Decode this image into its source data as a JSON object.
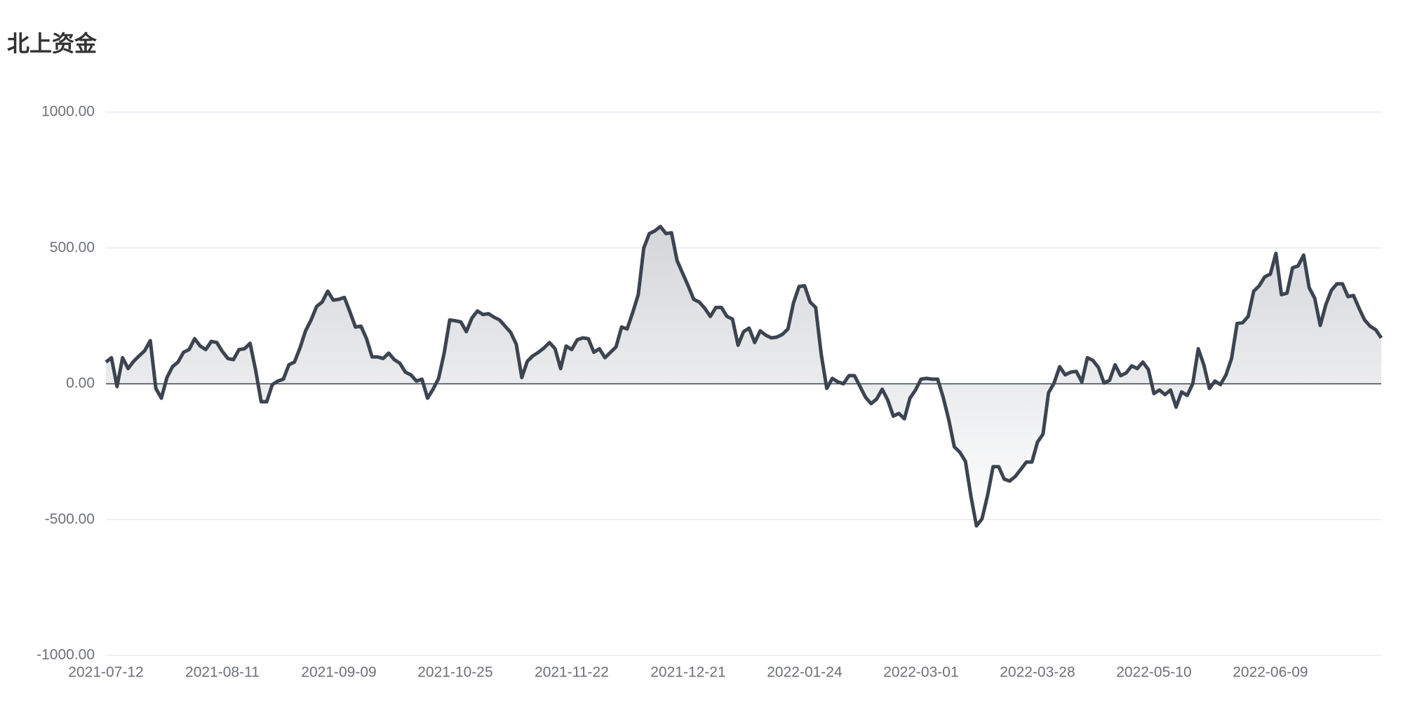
{
  "chart_data": {
    "type": "line",
    "title": "北上资金",
    "categories": [
      "2021-07-12",
      null,
      null,
      null,
      null,
      null,
      null,
      null,
      null,
      null,
      null,
      null,
      null,
      null,
      null,
      null,
      null,
      null,
      null,
      null,
      null,
      "2021-08-11",
      null,
      null,
      null,
      null,
      null,
      null,
      null,
      null,
      null,
      null,
      null,
      null,
      null,
      null,
      null,
      null,
      null,
      null,
      null,
      null,
      "2021-09-09",
      null,
      null,
      null,
      null,
      null,
      null,
      null,
      null,
      null,
      null,
      null,
      null,
      null,
      null,
      null,
      null,
      null,
      null,
      null,
      null,
      "2021-10-25",
      null,
      null,
      null,
      null,
      null,
      null,
      null,
      null,
      null,
      null,
      null,
      null,
      null,
      null,
      null,
      null,
      null,
      null,
      null,
      null,
      "2021-11-22",
      null,
      null,
      null,
      null,
      null,
      null,
      null,
      null,
      null,
      null,
      null,
      null,
      null,
      null,
      null,
      null,
      null,
      null,
      null,
      null,
      "2021-12-21",
      null,
      null,
      null,
      null,
      null,
      null,
      null,
      null,
      null,
      null,
      null,
      null,
      null,
      null,
      null,
      null,
      null,
      null,
      null,
      null,
      "2022-01-24",
      null,
      null,
      null,
      null,
      null,
      null,
      null,
      null,
      null,
      null,
      null,
      null,
      null,
      null,
      null,
      null,
      null,
      null,
      null,
      null,
      "2022-03-01",
      null,
      null,
      null,
      null,
      null,
      null,
      null,
      null,
      null,
      null,
      null,
      null,
      null,
      null,
      null,
      null,
      null,
      null,
      null,
      null,
      "2022-03-28",
      null,
      null,
      null,
      null,
      null,
      null,
      null,
      null,
      null,
      null,
      null,
      null,
      null,
      null,
      null,
      null,
      null,
      null,
      null,
      null,
      "2022-05-10",
      null,
      null,
      null,
      null,
      null,
      null,
      null,
      null,
      null,
      null,
      null,
      null,
      null,
      null,
      null,
      null,
      null,
      null,
      null,
      null,
      "2022-06-09",
      null,
      null,
      null,
      null,
      null,
      null,
      null,
      null,
      null,
      null,
      null,
      null,
      null,
      null,
      null,
      null,
      null,
      null,
      null,
      null
    ],
    "values": [
      80,
      96,
      -10,
      96,
      56,
      83,
      103,
      122,
      159,
      -17,
      -53,
      23,
      63,
      80,
      116,
      126,
      166,
      139,
      126,
      156,
      152,
      119,
      93,
      89,
      126,
      129,
      149,
      50,
      -66,
      -66,
      -3,
      10,
      17,
      70,
      80,
      132,
      195,
      235,
      285,
      301,
      341,
      308,
      311,
      318,
      265,
      209,
      212,
      166,
      99,
      99,
      93,
      113,
      89,
      76,
      43,
      33,
      10,
      17,
      -53,
      -20,
      20,
      113,
      235,
      232,
      228,
      192,
      242,
      268,
      255,
      258,
      245,
      235,
      212,
      189,
      146,
      23,
      83,
      103,
      116,
      132,
      152,
      129,
      56,
      139,
      126,
      162,
      169,
      166,
      116,
      129,
      96,
      116,
      136,
      209,
      202,
      262,
      328,
      500,
      553,
      563,
      579,
      553,
      556,
      454,
      407,
      361,
      311,
      301,
      278,
      248,
      281,
      281,
      248,
      238,
      142,
      192,
      205,
      152,
      195,
      179,
      169,
      172,
      182,
      202,
      298,
      358,
      361,
      301,
      281,
      109,
      -17,
      20,
      7,
      0,
      30,
      30,
      -10,
      -50,
      -73,
      -56,
      -20,
      -60,
      -119,
      -109,
      -129,
      -53,
      -23,
      17,
      20,
      17,
      17,
      -50,
      -132,
      -232,
      -252,
      -285,
      -414,
      -523,
      -497,
      -411,
      -305,
      -305,
      -351,
      -358,
      -341,
      -315,
      -288,
      -288,
      -215,
      -185,
      -33,
      3,
      63,
      33,
      43,
      46,
      7,
      96,
      86,
      60,
      3,
      13,
      70,
      30,
      40,
      66,
      56,
      80,
      53,
      -36,
      -23,
      -40,
      -23,
      -86,
      -30,
      -43,
      0,
      129,
      70,
      -17,
      10,
      -3,
      33,
      93,
      222,
      225,
      248,
      341,
      361,
      394,
      404,
      480,
      328,
      334,
      427,
      434,
      474,
      354,
      315,
      215,
      291,
      344,
      368,
      368,
      321,
      325,
      278,
      235,
      212,
      199,
      169
    ],
    "color": "#3c4450",
    "area": true,
    "grid": true,
    "ylim": [
      -1000,
      1000
    ],
    "yticks": [
      {
        "value": -1000,
        "label": "-1000.00"
      },
      {
        "value": -500,
        "label": "-500.00"
      },
      {
        "value": 0,
        "label": "0.00"
      },
      {
        "value": 500,
        "label": "500.00"
      },
      {
        "value": 1000,
        "label": "1000.00"
      }
    ]
  }
}
